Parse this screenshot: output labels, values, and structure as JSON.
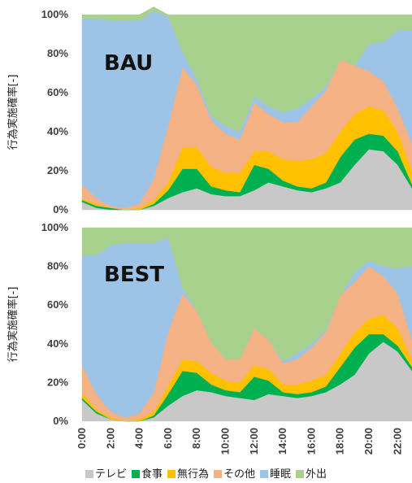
{
  "chart_data": [
    {
      "type": "area",
      "stacked": true,
      "title": "BAU",
      "ylabel": "行為実施確率[-]",
      "ylim": [
        0,
        100
      ],
      "yticks": [
        "0%",
        "20%",
        "40%",
        "60%",
        "80%",
        "100%"
      ],
      "x": [
        "0:00",
        "1:00",
        "2:00",
        "3:00",
        "4:00",
        "5:00",
        "6:00",
        "7:00",
        "8:00",
        "9:00",
        "10:00",
        "11:00",
        "12:00",
        "13:00",
        "14:00",
        "15:00",
        "16:00",
        "17:00",
        "18:00",
        "19:00",
        "20:00",
        "21:00",
        "22:00",
        "23:00"
      ],
      "series": [
        {
          "name": "テレビ",
          "color": "#c8c8c8",
          "values": [
            4,
            1,
            0,
            0,
            0,
            2,
            6,
            9,
            11,
            8,
            7,
            7,
            10,
            14,
            12,
            10,
            9,
            11,
            14,
            23,
            31,
            30,
            23,
            11
          ]
        },
        {
          "name": "食事",
          "color": "#00b050",
          "values": [
            1,
            1,
            1,
            0,
            0,
            1,
            4,
            12,
            10,
            4,
            3,
            2,
            13,
            7,
            3,
            2,
            2,
            3,
            13,
            13,
            8,
            8,
            7,
            2
          ]
        },
        {
          "name": "無行為",
          "color": "#ffc000",
          "values": [
            1,
            1,
            0,
            0,
            1,
            2,
            4,
            11,
            11,
            10,
            9,
            10,
            7,
            9,
            11,
            13,
            15,
            15,
            13,
            13,
            14,
            13,
            10,
            7
          ]
        },
        {
          "name": "その他",
          "color": "#f4b183",
          "values": [
            7,
            3,
            1,
            1,
            2,
            11,
            29,
            41,
            32,
            24,
            20,
            17,
            25,
            19,
            19,
            20,
            27,
            32,
            37,
            25,
            18,
            15,
            12,
            14
          ]
        },
        {
          "name": "睡眠",
          "color": "#9dc3e6",
          "values": [
            85,
            92,
            95,
            96,
            94,
            86,
            56,
            8,
            3,
            2,
            4,
            4,
            3,
            4,
            5,
            7,
            4,
            2,
            0,
            0,
            14,
            20,
            40,
            58
          ]
        },
        {
          "name": "外出",
          "color": "#a9d18e",
          "values": [
            2,
            2,
            3,
            3,
            3,
            2,
            1,
            19,
            33,
            52,
            57,
            60,
            42,
            47,
            50,
            48,
            43,
            37,
            23,
            26,
            15,
            14,
            8,
            8
          ]
        }
      ]
    },
    {
      "type": "area",
      "stacked": true,
      "title": "BEST",
      "ylabel": "行為実施確率[-]",
      "ylim": [
        0,
        100
      ],
      "yticks": [
        "0%",
        "20%",
        "40%",
        "60%",
        "80%",
        "100%"
      ],
      "x": [
        "0:00",
        "1:00",
        "2:00",
        "3:00",
        "4:00",
        "5:00",
        "6:00",
        "7:00",
        "8:00",
        "9:00",
        "10:00",
        "11:00",
        "12:00",
        "13:00",
        "14:00",
        "15:00",
        "16:00",
        "17:00",
        "18:00",
        "19:00",
        "20:00",
        "21:00",
        "22:00",
        "23:00"
      ],
      "series": [
        {
          "name": "テレビ",
          "color": "#c8c8c8",
          "values": [
            11,
            4,
            1,
            0,
            0,
            2,
            8,
            13,
            16,
            15,
            13,
            12,
            11,
            14,
            13,
            12,
            13,
            15,
            19,
            24,
            35,
            41,
            36,
            26
          ]
        },
        {
          "name": "食事",
          "color": "#00b050",
          "values": [
            1,
            1,
            0,
            0,
            0,
            1,
            6,
            13,
            9,
            4,
            3,
            3,
            12,
            7,
            2,
            2,
            2,
            3,
            9,
            14,
            10,
            4,
            3,
            2
          ]
        },
        {
          "name": "無行為",
          "color": "#ffc000",
          "values": [
            3,
            1,
            1,
            0,
            1,
            2,
            4,
            6,
            6,
            6,
            5,
            5,
            6,
            6,
            4,
            5,
            6,
            6,
            7,
            8,
            8,
            10,
            9,
            4
          ]
        },
        {
          "name": "その他",
          "color": "#f4b183",
          "values": [
            14,
            8,
            3,
            2,
            3,
            10,
            28,
            34,
            26,
            16,
            11,
            12,
            19,
            15,
            11,
            13,
            17,
            22,
            30,
            26,
            27,
            20,
            18,
            10
          ]
        },
        {
          "name": "睡眠",
          "color": "#9dc3e6",
          "values": [
            57,
            72,
            86,
            90,
            88,
            77,
            49,
            3,
            0,
            0,
            0,
            0,
            0,
            0,
            1,
            3,
            2,
            1,
            0,
            5,
            3,
            5,
            13,
            38
          ]
        },
        {
          "name": "外出",
          "color": "#a9d18e",
          "values": [
            14,
            14,
            9,
            8,
            8,
            8,
            5,
            31,
            43,
            59,
            68,
            68,
            52,
            58,
            69,
            65,
            60,
            53,
            35,
            23,
            17,
            20,
            21,
            20
          ]
        }
      ]
    }
  ],
  "legend": [
    {
      "name": "テレビ",
      "color": "#c8c8c8"
    },
    {
      "name": "食事",
      "color": "#00b050"
    },
    {
      "name": "無行為",
      "color": "#ffc000"
    },
    {
      "name": "その他",
      "color": "#f4b183"
    },
    {
      "name": "睡眠",
      "color": "#9dc3e6"
    },
    {
      "name": "外出",
      "color": "#a9d18e"
    }
  ],
  "xtick_labels": [
    "0:00",
    "2:00",
    "4:00",
    "6:00",
    "8:00",
    "10:00",
    "12:00",
    "14:00",
    "16:00",
    "18:00",
    "20:00",
    "22:00"
  ]
}
